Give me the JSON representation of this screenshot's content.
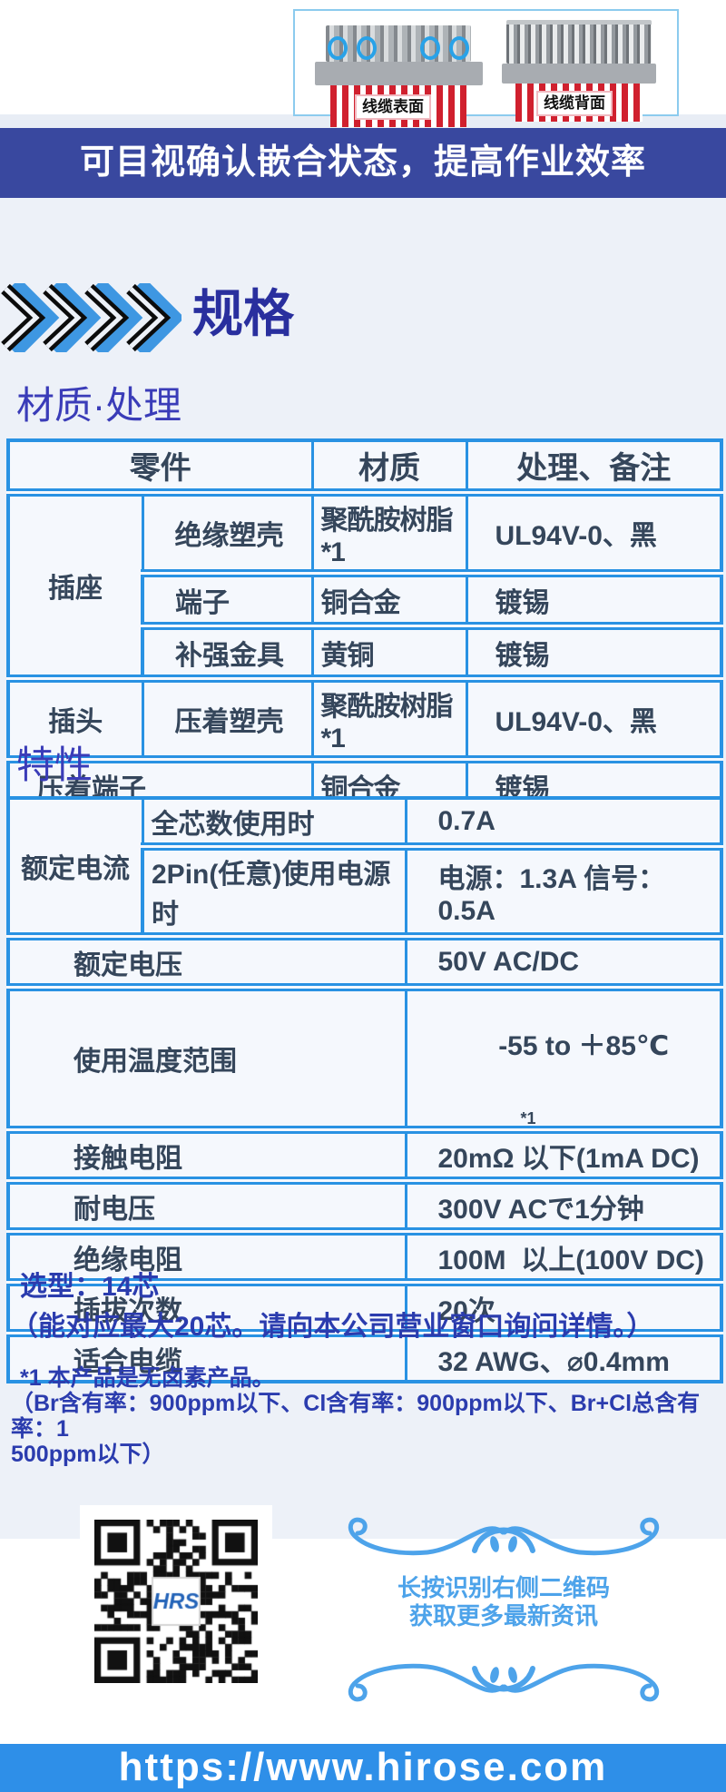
{
  "hero": {
    "left_label": "线缆表面",
    "right_label": "线缆背面"
  },
  "banner": {
    "text": "可目视确认嵌合状态，提高作业效率"
  },
  "spec": {
    "title": "规格"
  },
  "materials": {
    "heading": "材质·处理",
    "headers": [
      "零件",
      "材质",
      "处理、备注"
    ],
    "rows": [
      {
        "group": "插座",
        "part": "绝缘塑壳",
        "material": "聚酰胺树脂*1",
        "note": "UL94V-0、黑"
      },
      {
        "part": "端子",
        "material": "铜合金",
        "note": "镀锡"
      },
      {
        "part": "补强金具",
        "material": "黄铜",
        "note": "镀锡"
      },
      {
        "group": "插头",
        "part": "压着塑壳",
        "material": "聚酰胺树脂*1",
        "note": "UL94V-0、黑"
      },
      {
        "group": "压着端子",
        "material": "铜合金",
        "note": "镀锡"
      }
    ]
  },
  "characteristics": {
    "heading": "特性",
    "rows": [
      {
        "group": "额定电流",
        "label": "全芯数使用时",
        "value": "0.7A"
      },
      {
        "label": "2Pin(任意)使用电源时",
        "value": "电源：1.3A 信号：0.5A"
      },
      {
        "label": "额定电压",
        "value": "50V AC/DC"
      },
      {
        "label": "使用温度范围",
        "value": "-55 to ＋85℃",
        "note": "*1"
      },
      {
        "label": "接触电阻",
        "value": "20mΩ 以下(1mA DC)"
      },
      {
        "label": "耐电压",
        "value": "300V ACで1分钟"
      },
      {
        "label": "绝缘电阻",
        "value": "100M  以上(100V DC)"
      },
      {
        "label": "插拔次数",
        "value": "20次"
      },
      {
        "label": "适合电缆",
        "value": "32 AWG、⌀0.4mm"
      }
    ]
  },
  "selection": {
    "line1": "选型：14芯",
    "line2": "（能对应最大20芯。请向本公司营业窗口询问详情。）"
  },
  "footnote": {
    "line1": "*1 本产品是无卤素产品。",
    "rest": "（Br含有率：900ppm以下、Cl含有率：900ppm以下、Br+Cl总含有率：1\n500ppm以下）"
  },
  "qr_section": {
    "line1": "长按识别右侧二维码",
    "line2": "获取更多最新资讯",
    "logo": "HRS"
  },
  "footer": {
    "url": "https://www.hirose.com"
  },
  "colors": {
    "accent_blue": "#2992e3",
    "banner_blue": "#39489f",
    "heading_indigo": "#3a3cb8",
    "light_blue": "#4da3ea",
    "footer_blue": "#2e8fe8",
    "cable_red": "#d0202e"
  }
}
